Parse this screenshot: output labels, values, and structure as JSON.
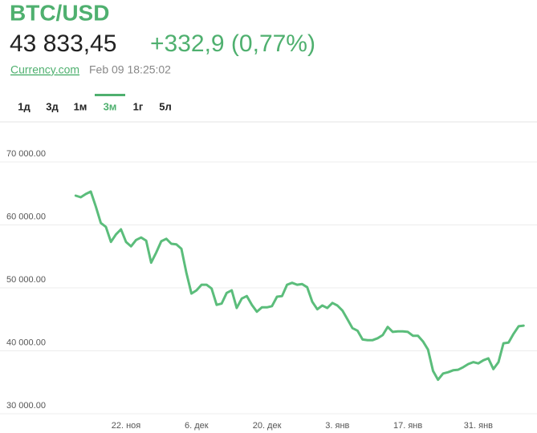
{
  "header": {
    "title": "BTC/USD",
    "price": "43 833,45",
    "change": "+332,9 (0,77%)",
    "source": "Currency.com",
    "timestamp": "Feb 09 18:25:02"
  },
  "tabs": [
    "1д",
    "3д",
    "1м",
    "3м",
    "1г",
    "5л"
  ],
  "active_tab": "3м",
  "chart_data": {
    "type": "line",
    "color": "#5bbd7b",
    "grid": true,
    "categories": [
      null,
      null,
      null,
      null,
      null,
      null,
      null,
      null,
      null,
      null,
      "22. ноя",
      null,
      null,
      null,
      null,
      null,
      null,
      null,
      null,
      null,
      null,
      null,
      null,
      null,
      "6. дек",
      null,
      null,
      null,
      null,
      null,
      null,
      null,
      null,
      null,
      null,
      null,
      null,
      null,
      "20. дек",
      null,
      null,
      null,
      null,
      null,
      null,
      null,
      null,
      null,
      null,
      null,
      null,
      null,
      "3. янв",
      null,
      null,
      null,
      null,
      null,
      null,
      null,
      null,
      null,
      null,
      null,
      null,
      null,
      "17. янв",
      null,
      null,
      null,
      null,
      null,
      null,
      null,
      null,
      null,
      null,
      null,
      null,
      null,
      "31. янв",
      null,
      null,
      null,
      null,
      null,
      null,
      null,
      null,
      null
    ],
    "values": [
      64650,
      64400,
      64900,
      65300,
      62900,
      60300,
      59700,
      57300,
      58500,
      59300,
      57300,
      56600,
      57600,
      58000,
      57500,
      54000,
      55600,
      57400,
      57800,
      57000,
      56900,
      56200,
      52400,
      49100,
      49600,
      50500,
      50500,
      49900,
      47300,
      47500,
      49200,
      49600,
      46800,
      48300,
      48700,
      47300,
      46200,
      46900,
      46900,
      47100,
      48600,
      48700,
      50500,
      50800,
      50500,
      50600,
      50100,
      47800,
      46600,
      47200,
      46800,
      47600,
      47200,
      46400,
      45000,
      43600,
      43200,
      41800,
      41700,
      41700,
      42000,
      42500,
      43800,
      43000,
      43100,
      43100,
      43000,
      42400,
      42400,
      41500,
      40200,
      36800,
      35400,
      36400,
      36600,
      36900,
      37000,
      37400,
      37900,
      38200,
      38000,
      38500,
      38800,
      37100,
      38200,
      41200,
      41300,
      42700,
      43900,
      44000
    ],
    "ylim": [
      30000,
      70000
    ],
    "yticks": [
      {
        "value": 30000,
        "label": "30 000.00"
      },
      {
        "value": 40000,
        "label": "40 000.00"
      },
      {
        "value": 50000,
        "label": "50 000.00"
      },
      {
        "value": 60000,
        "label": "60 000.00"
      },
      {
        "value": 70000,
        "label": "70 000.00"
      }
    ]
  }
}
